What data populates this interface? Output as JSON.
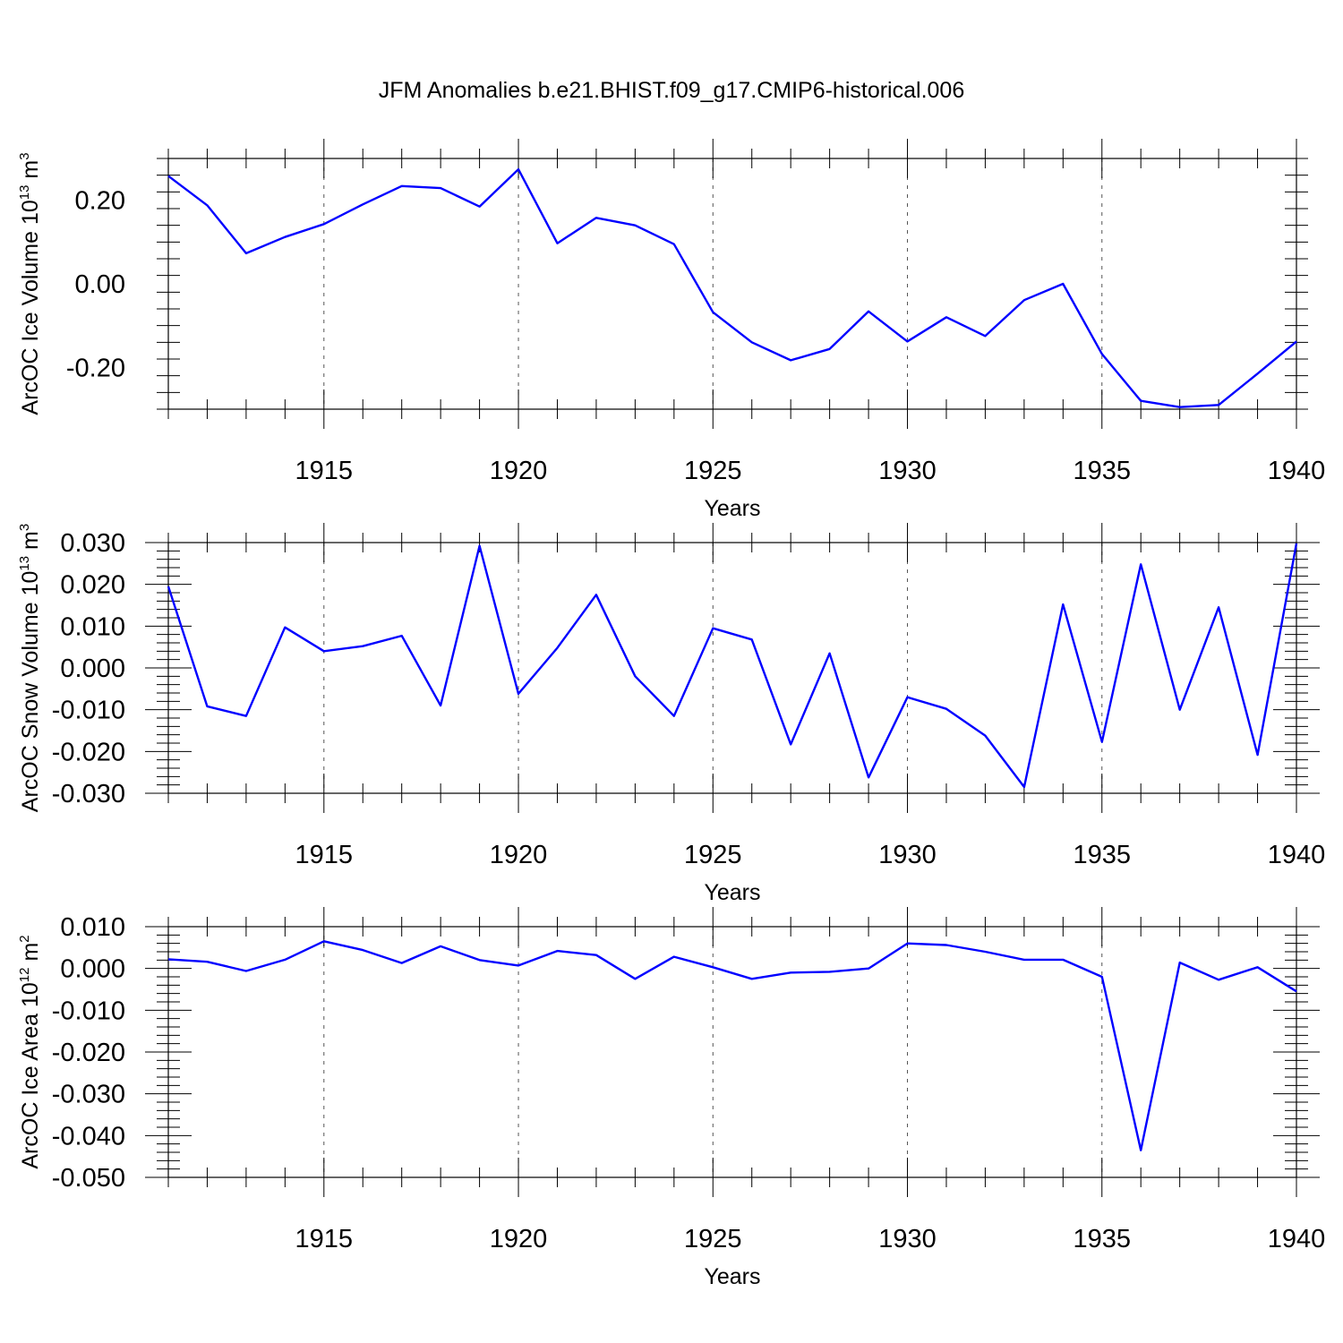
{
  "chart_data": {
    "title": "JFM Anomalies b.e21.BHIST.f09_g17.CMIP6-historical.006",
    "type": "line",
    "color": "#0000ff",
    "x_years": [
      1911,
      1912,
      1913,
      1914,
      1915,
      1916,
      1917,
      1918,
      1919,
      1920,
      1921,
      1922,
      1923,
      1924,
      1925,
      1926,
      1927,
      1928,
      1929,
      1930,
      1931,
      1932,
      1933,
      1934,
      1935,
      1936,
      1937,
      1938,
      1939,
      1940
    ],
    "xlim": [
      1911,
      1940
    ],
    "xticks": [
      1915,
      1920,
      1925,
      1930,
      1935,
      1940
    ],
    "panels": [
      {
        "name": "ice-volume",
        "xlabel": "Years",
        "ylabel_main": "ArcOC Ice Volume 10",
        "ylabel_exp": "13",
        "ylabel_unit": " m",
        "ylabel_unit_exp": "3",
        "ylim": [
          -0.3,
          0.3
        ],
        "yticks": [
          0.2,
          0.0,
          -0.2
        ],
        "ytick_labels": [
          "0.20",
          "0.00",
          "-0.20"
        ],
        "values": [
          0.258,
          0.188,
          0.073,
          0.112,
          0.143,
          0.19,
          0.234,
          0.229,
          0.185,
          0.274,
          0.097,
          0.158,
          0.14,
          0.095,
          -0.068,
          -0.14,
          -0.183,
          -0.156,
          -0.066,
          -0.138,
          -0.08,
          -0.125,
          -0.039,
          0.0,
          -0.168,
          -0.28,
          -0.295,
          -0.29,
          -0.215,
          -0.138
        ]
      },
      {
        "name": "snow-volume",
        "xlabel": "Years",
        "ylabel_main": "ArcOC Snow Volume 10",
        "ylabel_exp": "13",
        "ylabel_unit": " m",
        "ylabel_unit_exp": "3",
        "ylim": [
          -0.03,
          0.03
        ],
        "yticks": [
          0.03,
          0.02,
          0.01,
          0.0,
          -0.01,
          -0.02,
          -0.03
        ],
        "ytick_labels": [
          "0.030",
          "0.020",
          "0.010",
          "0.000",
          "-0.010",
          "-0.020",
          "-0.030"
        ],
        "values": [
          0.0195,
          -0.0092,
          -0.0115,
          0.0097,
          0.004,
          0.0052,
          0.0077,
          -0.009,
          0.0292,
          -0.0062,
          0.0048,
          0.0175,
          -0.002,
          -0.0115,
          0.0095,
          0.0068,
          -0.0183,
          0.0035,
          -0.0262,
          -0.007,
          -0.0098,
          -0.0162,
          -0.0285,
          0.0152,
          -0.0177,
          0.0248,
          -0.01,
          0.0145,
          -0.0208,
          0.0298
        ]
      },
      {
        "name": "ice-area",
        "xlabel": "Years",
        "ylabel_main": "ArcOC Ice Area 10",
        "ylabel_exp": "12",
        "ylabel_unit": " m",
        "ylabel_unit_exp": "2",
        "ylim": [
          -0.05,
          0.01
        ],
        "yticks": [
          0.01,
          0.0,
          -0.01,
          -0.02,
          -0.03,
          -0.04,
          -0.05
        ],
        "ytick_labels": [
          "0.010",
          "0.000",
          "-0.010",
          "-0.020",
          "-0.030",
          "-0.040",
          "-0.050"
        ],
        "values": [
          0.0022,
          0.0016,
          -0.0006,
          0.0021,
          0.0065,
          0.0044,
          0.0013,
          0.0053,
          0.002,
          0.0007,
          0.0042,
          0.0032,
          -0.0025,
          0.0028,
          0.0003,
          -0.0025,
          -0.001,
          -0.0008,
          0.0,
          0.006,
          0.0056,
          0.004,
          0.0021,
          0.0021,
          -0.002,
          -0.0435,
          0.0014,
          -0.0027,
          0.0003,
          -0.0055
        ]
      }
    ]
  }
}
